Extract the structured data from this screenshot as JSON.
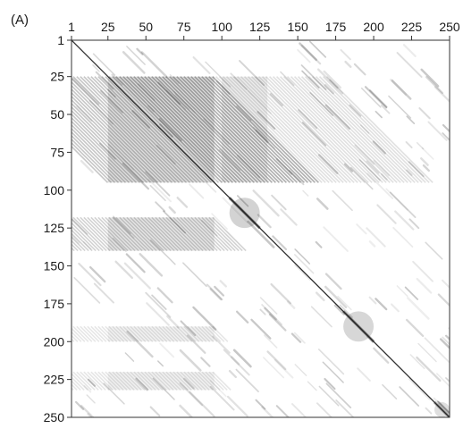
{
  "panel_label": "(A)",
  "chart_data": {
    "type": "heatmap",
    "title": "",
    "xlabel": "",
    "ylabel": "",
    "x_axis_position": "top",
    "xlim": [
      1,
      250
    ],
    "ylim": [
      1,
      250
    ],
    "y_inverted": true,
    "x_ticks": [
      "1",
      "25",
      "50",
      "75",
      "100",
      "125",
      "150",
      "175",
      "200",
      "225",
      "250"
    ],
    "y_ticks": [
      "1",
      "25",
      "50",
      "75",
      "100",
      "125",
      "150",
      "175",
      "200",
      "225",
      "250"
    ],
    "grid": false,
    "colormap": [
      "#ffffff",
      "#1a1a1a"
    ],
    "diagonal": {
      "from": 1,
      "to": 250,
      "intensity": 0.9
    },
    "regions": [
      {
        "x": [
          25,
          95
        ],
        "y": [
          25,
          95
        ],
        "intensity": 0.45,
        "pattern": "diagonal-bands"
      },
      {
        "x": [
          100,
          130
        ],
        "y": [
          25,
          95
        ],
        "intensity": 0.25,
        "pattern": "diagonal-bands"
      },
      {
        "x": [
          25,
          95
        ],
        "y": [
          118,
          140
        ],
        "intensity": 0.35,
        "pattern": "diagonal-bands"
      },
      {
        "x": [
          105,
          125
        ],
        "y": [
          105,
          125
        ],
        "intensity": 0.55,
        "pattern": "blob"
      },
      {
        "x": [
          180,
          200
        ],
        "y": [
          180,
          200
        ],
        "intensity": 0.5,
        "pattern": "blob"
      },
      {
        "x": [
          25,
          95
        ],
        "y": [
          190,
          200
        ],
        "intensity": 0.2,
        "pattern": "diagonal-bands"
      },
      {
        "x": [
          25,
          95
        ],
        "y": [
          220,
          232
        ],
        "intensity": 0.2,
        "pattern": "diagonal-bands"
      },
      {
        "x": [
          240,
          250
        ],
        "y": [
          240,
          250
        ],
        "intensity": 0.4,
        "pattern": "blob"
      }
    ],
    "background_streak_intensity": 0.18
  }
}
